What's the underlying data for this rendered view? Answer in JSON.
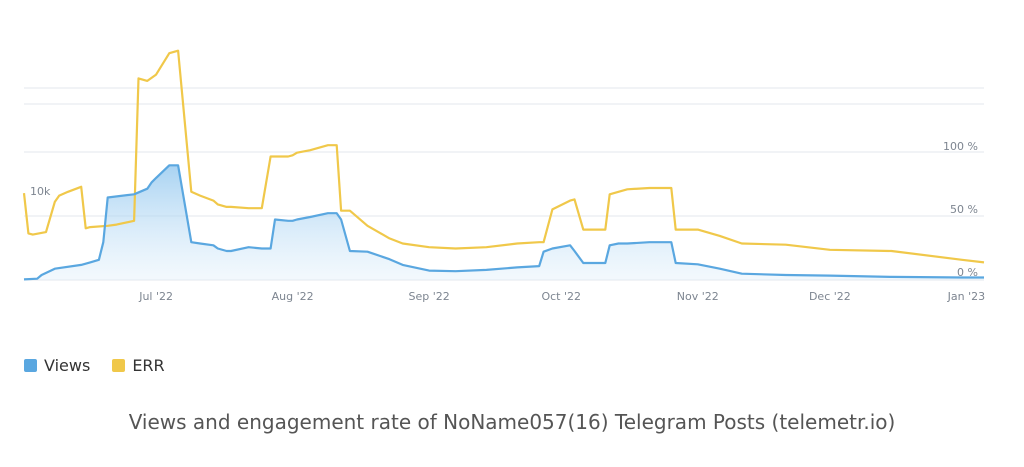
{
  "chart_data": {
    "type": "line",
    "title": "",
    "x_ticks": [
      "Jul '22",
      "Aug '22",
      "Sep '22",
      "Oct '22",
      "Nov '22",
      "Dec '22",
      "Jan '23"
    ],
    "y_left_tick": "10k",
    "y_right_ticks": [
      "0 %",
      "50 %",
      "100 %"
    ],
    "grid": true,
    "legend_position": "bottom-left",
    "colors": {
      "views": "#5aa7e0",
      "err": "#f0c84a"
    },
    "series": [
      {
        "name": "Views",
        "x": [
          "2022-06-01",
          "2022-06-04",
          "2022-06-05",
          "2022-06-08",
          "2022-06-14",
          "2022-06-16",
          "2022-06-18",
          "2022-06-19",
          "2022-06-20",
          "2022-06-26",
          "2022-06-29",
          "2022-06-30",
          "2022-07-01",
          "2022-07-04",
          "2022-07-06",
          "2022-07-09",
          "2022-07-11",
          "2022-07-14",
          "2022-07-15",
          "2022-07-17",
          "2022-07-18",
          "2022-07-22",
          "2022-07-25",
          "2022-07-27",
          "2022-07-28",
          "2022-07-31",
          "2022-08-01",
          "2022-08-02",
          "2022-08-05",
          "2022-08-09",
          "2022-08-11",
          "2022-08-12",
          "2022-08-14",
          "2022-08-18",
          "2022-08-23",
          "2022-08-26",
          "2022-09-01",
          "2022-09-07",
          "2022-09-14",
          "2022-09-21",
          "2022-09-26",
          "2022-09-27",
          "2022-09-29",
          "2022-10-03",
          "2022-10-04",
          "2022-10-06",
          "2022-10-11",
          "2022-10-12",
          "2022-10-14",
          "2022-10-16",
          "2022-10-21",
          "2022-10-26",
          "2022-10-27",
          "2022-11-01",
          "2022-11-06",
          "2022-11-11",
          "2022-11-21",
          "2022-12-01",
          "2022-12-15",
          "2022-12-31",
          "2023-01-05"
        ],
        "values": [
          0.01,
          0.02,
          0.08,
          0.18,
          0.24,
          0.28,
          0.32,
          0.6,
          1.31,
          1.36,
          1.45,
          1.55,
          1.62,
          1.82,
          1.82,
          0.6,
          0.58,
          0.55,
          0.5,
          0.46,
          0.46,
          0.52,
          0.5,
          0.5,
          0.96,
          0.94,
          0.94,
          0.96,
          1.0,
          1.06,
          1.06,
          0.96,
          0.46,
          0.45,
          0.33,
          0.24,
          0.15,
          0.14,
          0.16,
          0.2,
          0.22,
          0.45,
          0.5,
          0.55,
          0.46,
          0.27,
          0.27,
          0.55,
          0.58,
          0.58,
          0.6,
          0.6,
          0.27,
          0.25,
          0.18,
          0.1,
          0.08,
          0.07,
          0.05,
          0.04,
          0.04
        ]
      },
      {
        "name": "ERR",
        "x": [
          "2022-06-01",
          "2022-06-02",
          "2022-06-03",
          "2022-06-06",
          "2022-06-08",
          "2022-06-09",
          "2022-06-11",
          "2022-06-14",
          "2022-06-15",
          "2022-06-16",
          "2022-06-20",
          "2022-06-22",
          "2022-06-26",
          "2022-06-27",
          "2022-06-29",
          "2022-07-01",
          "2022-07-04",
          "2022-07-06",
          "2022-07-09",
          "2022-07-11",
          "2022-07-14",
          "2022-07-15",
          "2022-07-17",
          "2022-07-18",
          "2022-07-22",
          "2022-07-25",
          "2022-07-27",
          "2022-07-28",
          "2022-07-31",
          "2022-08-01",
          "2022-08-02",
          "2022-08-05",
          "2022-08-09",
          "2022-08-11",
          "2022-08-12",
          "2022-08-14",
          "2022-08-18",
          "2022-08-23",
          "2022-08-26",
          "2022-09-01",
          "2022-09-07",
          "2022-09-14",
          "2022-09-21",
          "2022-09-26",
          "2022-09-27",
          "2022-09-29",
          "2022-10-03",
          "2022-10-04",
          "2022-10-06",
          "2022-10-11",
          "2022-10-12",
          "2022-10-14",
          "2022-10-16",
          "2022-10-21",
          "2022-10-26",
          "2022-10-27",
          "2022-11-01",
          "2022-11-06",
          "2022-11-11",
          "2022-11-21",
          "2022-12-01",
          "2022-12-15",
          "2022-12-31",
          "2023-01-05"
        ],
        "values": [
          69,
          37,
          36,
          38,
          62,
          67,
          70,
          74,
          41,
          42,
          43,
          44,
          47,
          160,
          158,
          163,
          180,
          182,
          70,
          67,
          63,
          60,
          58,
          58,
          57,
          57,
          98,
          98,
          98,
          99,
          101,
          103,
          107,
          107,
          55,
          55,
          43,
          33,
          29,
          26,
          25,
          26,
          29,
          30,
          30,
          56,
          63,
          64,
          40,
          40,
          68,
          70,
          72,
          73,
          73,
          40,
          40,
          35,
          29,
          28,
          24,
          23,
          16,
          14
        ]
      }
    ]
  },
  "legend": {
    "views_label": "Views",
    "err_label": "ERR"
  },
  "caption": "Views and engagement rate of NoName057(16) Telegram Posts (telemetr.io)"
}
